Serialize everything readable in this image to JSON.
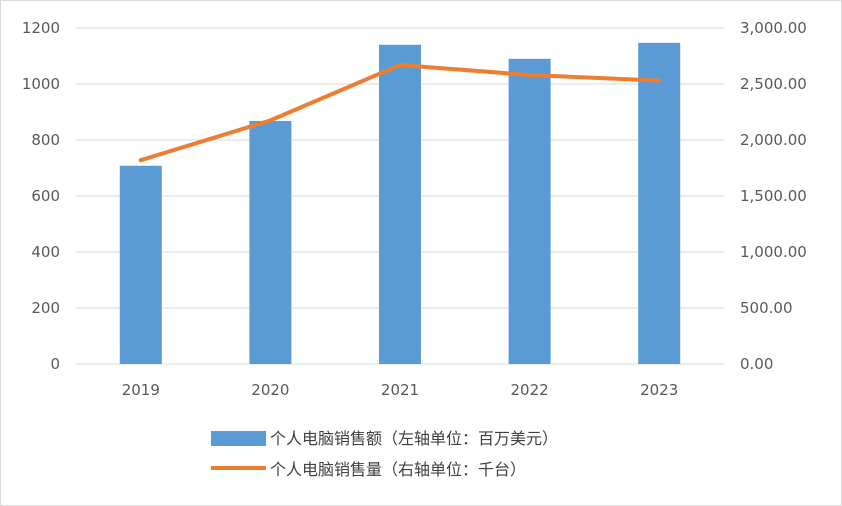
{
  "chart_data": {
    "type": "bar+line",
    "categories": [
      "2019",
      "2020",
      "2021",
      "2022",
      "2023"
    ],
    "series": [
      {
        "name": "个人电脑销售额（左轴单位：百万美元）",
        "type": "bar",
        "axis": "left",
        "values": [
          708,
          868,
          1140,
          1090,
          1147
        ]
      },
      {
        "name": "个人电脑销售量（右轴单位：千台）",
        "type": "line",
        "axis": "right",
        "values": [
          1820,
          2175,
          2670,
          2580,
          2530
        ]
      }
    ],
    "left_axis": {
      "ylim": [
        0,
        1200
      ],
      "ticks": [
        "0",
        "200",
        "400",
        "600",
        "800",
        "1000",
        "1200"
      ]
    },
    "right_axis": {
      "ylim": [
        0,
        3000
      ],
      "ticks": [
        "0.00",
        "500.00",
        "1,000.00",
        "1,500.00",
        "2,000.00",
        "2,500.00",
        "3,000.00"
      ]
    },
    "grid": true,
    "legend_position": "bottom",
    "colors": {
      "bar": "#5b9bd5",
      "line": "#ed7d31",
      "grid": "#d9d9d9",
      "axis": "#d9d9d9"
    }
  }
}
